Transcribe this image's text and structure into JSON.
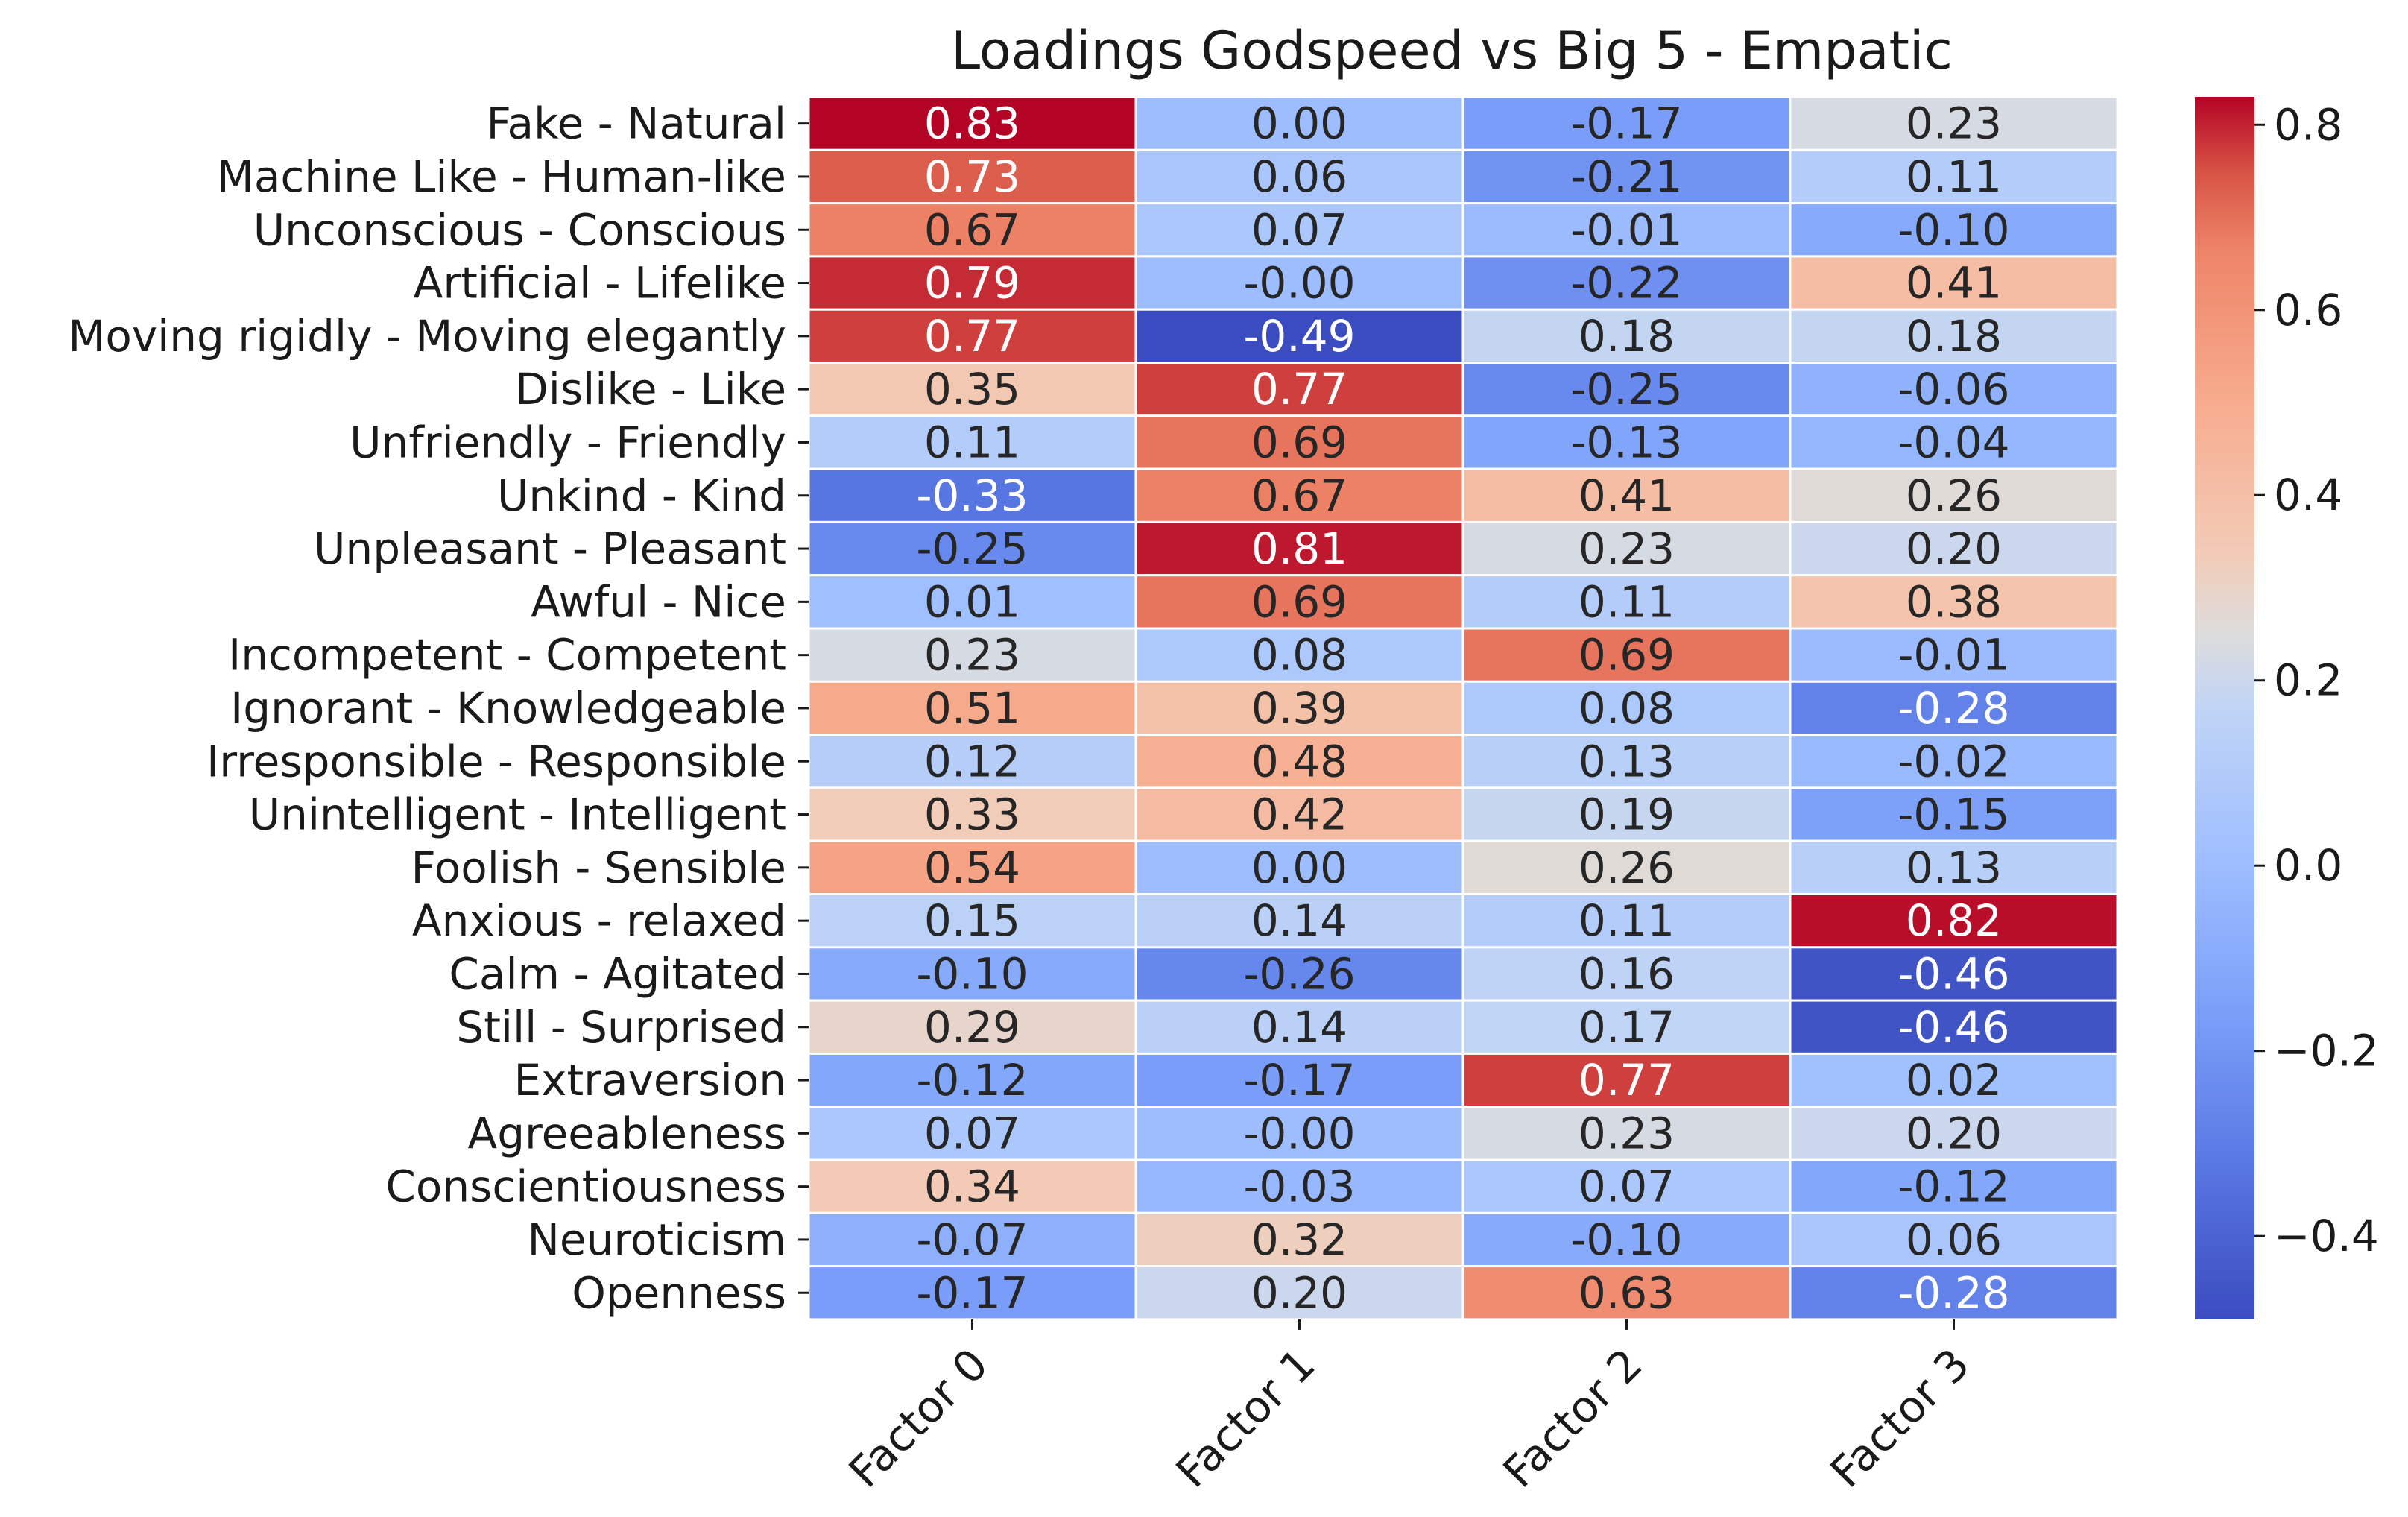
{
  "chart_data": {
    "type": "heatmap",
    "title": "Loadings Godspeed vs Big 5 - Empatic",
    "columns": [
      "Factor 0",
      "Factor 1",
      "Factor 2",
      "Factor 3"
    ],
    "rows": [
      "Fake - Natural",
      "Machine Like - Human-like",
      "Unconscious - Conscious",
      "Artificial - Lifelike",
      "Moving rigidly - Moving elegantly",
      "Dislike - Like",
      "Unfriendly - Friendly",
      "Unkind - Kind",
      "Unpleasant - Pleasant",
      "Awful - Nice",
      "Incompetent - Competent",
      "Ignorant - Knowledgeable",
      "Irresponsible - Responsible",
      "Unintelligent - Intelligent",
      "Foolish - Sensible",
      "Anxious  - relaxed",
      "Calm - Agitated",
      "Still - Surprised",
      "Extraversion",
      "Agreeableness",
      "Conscientiousness",
      "Neuroticism",
      "Openness"
    ],
    "values": [
      [
        0.83,
        0.0,
        -0.17,
        0.23
      ],
      [
        0.73,
        0.06,
        -0.21,
        0.11
      ],
      [
        0.67,
        0.07,
        -0.01,
        -0.1
      ],
      [
        0.79,
        -0.0,
        -0.22,
        0.41
      ],
      [
        0.77,
        -0.49,
        0.18,
        0.18
      ],
      [
        0.35,
        0.77,
        -0.25,
        -0.06
      ],
      [
        0.11,
        0.69,
        -0.13,
        -0.04
      ],
      [
        -0.33,
        0.67,
        0.41,
        0.26
      ],
      [
        -0.25,
        0.81,
        0.23,
        0.2
      ],
      [
        0.01,
        0.69,
        0.11,
        0.38
      ],
      [
        0.23,
        0.08,
        0.69,
        -0.01
      ],
      [
        0.51,
        0.39,
        0.08,
        -0.28
      ],
      [
        0.12,
        0.48,
        0.13,
        -0.02
      ],
      [
        0.33,
        0.42,
        0.19,
        -0.15
      ],
      [
        0.54,
        0.0,
        0.26,
        0.13
      ],
      [
        0.15,
        0.14,
        0.11,
        0.82
      ],
      [
        -0.1,
        -0.26,
        0.16,
        -0.46
      ],
      [
        0.29,
        0.14,
        0.17,
        -0.46
      ],
      [
        -0.12,
        -0.17,
        0.77,
        0.02
      ],
      [
        0.07,
        -0.0,
        0.23,
        0.2
      ],
      [
        0.34,
        -0.03,
        0.07,
        -0.12
      ],
      [
        -0.07,
        0.32,
        -0.1,
        0.06
      ],
      [
        -0.17,
        0.2,
        0.63,
        -0.28
      ]
    ],
    "cell_labels": [
      [
        "0.83",
        "0.00",
        "-0.17",
        "0.23"
      ],
      [
        "0.73",
        "0.06",
        "-0.21",
        "0.11"
      ],
      [
        "0.67",
        "0.07",
        "-0.01",
        "-0.10"
      ],
      [
        "0.79",
        "-0.00",
        "-0.22",
        "0.41"
      ],
      [
        "0.77",
        "-0.49",
        "0.18",
        "0.18"
      ],
      [
        "0.35",
        "0.77",
        "-0.25",
        "-0.06"
      ],
      [
        "0.11",
        "0.69",
        "-0.13",
        "-0.04"
      ],
      [
        "-0.33",
        "0.67",
        "0.41",
        "0.26"
      ],
      [
        "-0.25",
        "0.81",
        "0.23",
        "0.20"
      ],
      [
        "0.01",
        "0.69",
        "0.11",
        "0.38"
      ],
      [
        "0.23",
        "0.08",
        "0.69",
        "-0.01"
      ],
      [
        "0.51",
        "0.39",
        "0.08",
        "-0.28"
      ],
      [
        "0.12",
        "0.48",
        "0.13",
        "-0.02"
      ],
      [
        "0.33",
        "0.42",
        "0.19",
        "-0.15"
      ],
      [
        "0.54",
        "0.00",
        "0.26",
        "0.13"
      ],
      [
        "0.15",
        "0.14",
        "0.11",
        "0.82"
      ],
      [
        "-0.10",
        "-0.26",
        "0.16",
        "-0.46"
      ],
      [
        "0.29",
        "0.14",
        "0.17",
        "-0.46"
      ],
      [
        "-0.12",
        "-0.17",
        "0.77",
        "0.02"
      ],
      [
        "0.07",
        "-0.00",
        "0.23",
        "0.20"
      ],
      [
        "0.34",
        "-0.03",
        "0.07",
        "-0.12"
      ],
      [
        "-0.07",
        "0.32",
        "-0.10",
        "0.06"
      ],
      [
        "-0.17",
        "0.20",
        "0.63",
        "-0.28"
      ]
    ],
    "colormap": "coolwarm",
    "colorbar": {
      "range": [
        -0.49,
        0.83
      ],
      "ticks": [
        -0.4,
        -0.2,
        0.0,
        0.2,
        0.4,
        0.6,
        0.8
      ],
      "tick_labels": [
        "−0.4",
        "−0.2",
        "0.0",
        "0.2",
        "0.4",
        "0.6",
        "0.8"
      ]
    },
    "xlabel": "",
    "ylabel": ""
  }
}
